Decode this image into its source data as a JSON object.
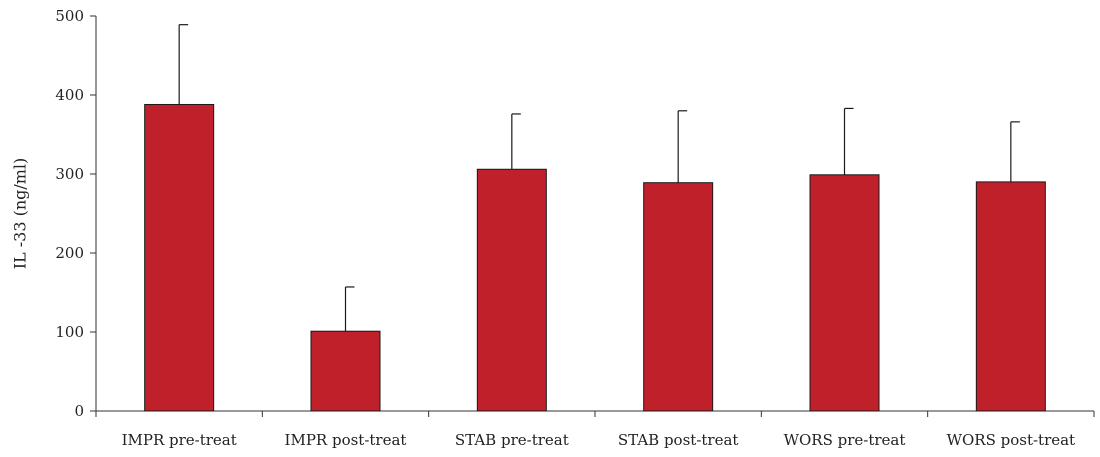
{
  "chart_data": {
    "type": "bar",
    "title": "",
    "xlabel": "",
    "ylabel": "IL -33 (ng/ml)",
    "ylim": [
      0,
      500
    ],
    "yticks": [
      0,
      100,
      200,
      300,
      400,
      500
    ],
    "grid": false,
    "legend": "none",
    "categories": [
      "IMPR pre-treat",
      "IMPR post-treat",
      "STAB pre-treat",
      "STAB post-treat",
      "WORS pre-treat",
      "WORS post-treat"
    ],
    "series": [
      {
        "values": [
          388,
          101,
          306,
          289,
          299,
          290
        ],
        "error_plus": [
          101,
          56,
          70,
          91,
          84,
          76
        ]
      }
    ],
    "colors": {
      "bar_fill": "#c0202a",
      "bar_stroke": "#1a1a1a",
      "axis": "#333333"
    }
  }
}
